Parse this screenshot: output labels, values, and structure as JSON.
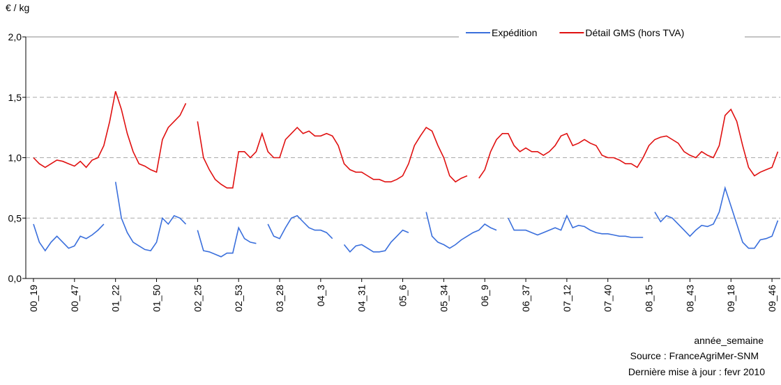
{
  "chart_data": {
    "type": "line",
    "y_label": "€ / kg",
    "x_label": "année_semaine",
    "notes": [
      "Source : FranceAgriMer-SNM",
      "Dernière mise à jour : fevr 2010"
    ],
    "categories": [
      "00_19",
      null,
      null,
      null,
      null,
      null,
      null,
      "00_47",
      null,
      null,
      null,
      null,
      null,
      null,
      "01_22",
      null,
      null,
      null,
      null,
      null,
      null,
      "01_50",
      null,
      null,
      null,
      null,
      null,
      null,
      "02_25",
      null,
      null,
      null,
      null,
      null,
      null,
      "02_53",
      null,
      null,
      null,
      null,
      null,
      null,
      "03_28",
      null,
      null,
      null,
      null,
      null,
      null,
      "04_3",
      null,
      null,
      null,
      null,
      null,
      null,
      "04_31",
      null,
      null,
      null,
      null,
      null,
      null,
      "05_6",
      null,
      null,
      null,
      null,
      null,
      null,
      "05_34",
      null,
      null,
      null,
      null,
      null,
      null,
      "06_9",
      null,
      null,
      null,
      null,
      null,
      null,
      "06_37",
      null,
      null,
      null,
      null,
      null,
      null,
      "07_12",
      null,
      null,
      null,
      null,
      null,
      null,
      "07_40",
      null,
      null,
      null,
      null,
      null,
      null,
      "08_15",
      null,
      null,
      null,
      null,
      null,
      null,
      "08_43",
      null,
      null,
      null,
      null,
      null,
      null,
      "09_18",
      null,
      null,
      null,
      null,
      null,
      null,
      "09_46",
      null
    ],
    "series": [
      {
        "name": "Expédition",
        "color": "#3a6fdc",
        "values": [
          0.45,
          0.3,
          0.23,
          0.3,
          0.35,
          0.3,
          0.25,
          0.27,
          0.35,
          0.33,
          0.36,
          0.4,
          0.45,
          null,
          0.8,
          0.5,
          0.38,
          0.3,
          0.27,
          0.24,
          0.23,
          0.3,
          0.5,
          0.45,
          0.52,
          0.5,
          0.45,
          null,
          0.4,
          0.23,
          0.22,
          0.2,
          0.18,
          0.21,
          0.21,
          0.42,
          0.33,
          0.3,
          0.29,
          null,
          0.45,
          0.35,
          0.33,
          0.42,
          0.5,
          0.52,
          0.47,
          0.42,
          0.4,
          0.4,
          0.38,
          0.33,
          null,
          0.28,
          0.22,
          0.27,
          0.28,
          0.25,
          0.22,
          0.22,
          0.23,
          0.3,
          0.35,
          0.4,
          0.38,
          null,
          null,
          0.55,
          0.35,
          0.3,
          0.28,
          0.25,
          0.28,
          0.32,
          0.35,
          0.38,
          0.4,
          0.45,
          0.42,
          0.4,
          null,
          0.5,
          0.4,
          0.4,
          0.4,
          0.38,
          0.36,
          0.38,
          0.4,
          0.42,
          0.4,
          0.52,
          0.42,
          0.44,
          0.43,
          0.4,
          0.38,
          0.37,
          0.37,
          0.36,
          0.35,
          0.35,
          0.34,
          0.34,
          0.34,
          null,
          0.55,
          0.47,
          0.52,
          0.5,
          0.45,
          0.4,
          0.35,
          0.4,
          0.44,
          0.43,
          0.45,
          0.55,
          0.75,
          0.6,
          0.45,
          0.3,
          0.25,
          0.25,
          0.32,
          0.33,
          0.35,
          0.48
        ]
      },
      {
        "name": "Détail GMS (hors TVA)",
        "color": "#e01010",
        "values": [
          1.0,
          0.95,
          0.92,
          0.95,
          0.98,
          0.97,
          0.95,
          0.93,
          0.97,
          0.92,
          0.98,
          1.0,
          1.1,
          1.3,
          1.55,
          1.4,
          1.2,
          1.05,
          0.95,
          0.93,
          0.9,
          0.88,
          1.15,
          1.25,
          1.3,
          1.35,
          1.45,
          null,
          1.3,
          1.0,
          0.9,
          0.82,
          0.78,
          0.75,
          0.75,
          1.05,
          1.05,
          1.0,
          1.05,
          1.2,
          1.05,
          1.0,
          1.0,
          1.15,
          1.2,
          1.25,
          1.2,
          1.22,
          1.18,
          1.18,
          1.2,
          1.18,
          1.1,
          0.95,
          0.9,
          0.88,
          0.88,
          0.85,
          0.82,
          0.82,
          0.8,
          0.8,
          0.82,
          0.85,
          0.95,
          1.1,
          1.18,
          1.25,
          1.22,
          1.1,
          1.0,
          0.85,
          0.8,
          0.83,
          0.85,
          null,
          0.83,
          0.9,
          1.05,
          1.15,
          1.2,
          1.2,
          1.1,
          1.05,
          1.08,
          1.05,
          1.05,
          1.02,
          1.05,
          1.1,
          1.18,
          1.2,
          1.1,
          1.12,
          1.15,
          1.12,
          1.1,
          1.02,
          1.0,
          1.0,
          0.98,
          0.95,
          0.95,
          0.92,
          1.0,
          1.1,
          1.15,
          1.17,
          1.18,
          1.15,
          1.12,
          1.05,
          1.02,
          1.0,
          1.05,
          1.02,
          1.0,
          1.1,
          1.35,
          1.4,
          1.3,
          1.1,
          0.92,
          0.85,
          0.88,
          0.9,
          0.92,
          1.05
        ]
      }
    ],
    "ylim": [
      0,
      2
    ],
    "yticks": [
      {
        "value": 0,
        "label": "0,0"
      },
      {
        "value": 0.5,
        "label": "0,5"
      },
      {
        "value": 1,
        "label": "1,0"
      },
      {
        "value": 1.5,
        "label": "1,5"
      },
      {
        "value": 2,
        "label": "2,0"
      }
    ],
    "grid": true,
    "legend": "top"
  }
}
